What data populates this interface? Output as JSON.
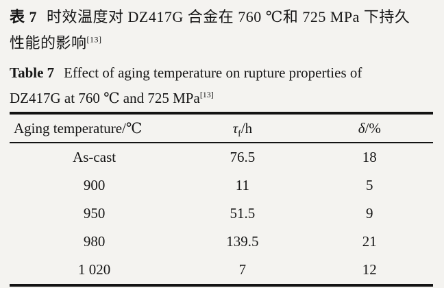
{
  "page": {
    "background": "#f4f3f0",
    "ink_color": "#151515"
  },
  "caption_zh": {
    "label": "表 7",
    "line1": "时效温度对 DZ417G 合金在 760 ℃和 725 MPa 下持久",
    "line2": "性能的影响",
    "ref": "[13]"
  },
  "caption_en": {
    "label": "Table 7",
    "line1": "Effect of aging temperature on rupture properties of",
    "line2": "DZ417G at 760 ℃ and 725 MPa",
    "ref": "[13]"
  },
  "table": {
    "columns": {
      "col1": "Aging temperature/℃",
      "col2_symbol": "τ",
      "col2_sub": "f",
      "col2_rest": "/h",
      "col3_symbol": "δ",
      "col3_rest": "/%"
    },
    "rows": [
      [
        "As-cast",
        "76.5",
        "18"
      ],
      [
        "900",
        "11",
        "5"
      ],
      [
        "950",
        "51.5",
        "9"
      ],
      [
        "980",
        "139.5",
        "21"
      ],
      [
        "1 020",
        "7",
        "12"
      ]
    ]
  }
}
